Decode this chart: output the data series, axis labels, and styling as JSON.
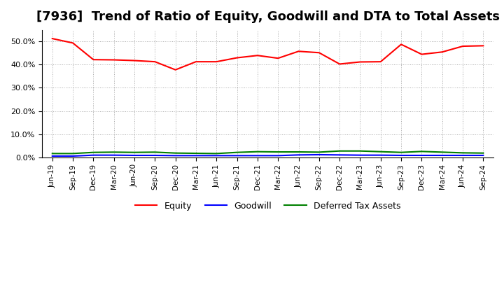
{
  "title": "[7936]  Trend of Ratio of Equity, Goodwill and DTA to Total Assets",
  "labels": [
    "Jun-19",
    "Sep-19",
    "Dec-19",
    "Mar-20",
    "Jun-20",
    "Sep-20",
    "Dec-20",
    "Mar-21",
    "Jun-21",
    "Sep-21",
    "Dec-21",
    "Mar-22",
    "Jun-22",
    "Sep-22",
    "Dec-22",
    "Mar-23",
    "Jun-23",
    "Sep-23",
    "Dec-23",
    "Mar-24",
    "Jun-24",
    "Sep-24"
  ],
  "equity": [
    0.513,
    0.494,
    0.422,
    0.421,
    0.418,
    0.413,
    0.378,
    0.413,
    0.413,
    0.43,
    0.44,
    0.428,
    0.458,
    0.452,
    0.403,
    0.412,
    0.413,
    0.488,
    0.445,
    0.455,
    0.48,
    0.482
  ],
  "goodwill": [
    0.005,
    0.005,
    0.009,
    0.009,
    0.008,
    0.008,
    0.007,
    0.007,
    0.007,
    0.007,
    0.007,
    0.007,
    0.01,
    0.011,
    0.01,
    0.009,
    0.009,
    0.008,
    0.008,
    0.008,
    0.008,
    0.008
  ],
  "dta": [
    0.016,
    0.016,
    0.021,
    0.022,
    0.021,
    0.022,
    0.018,
    0.017,
    0.016,
    0.021,
    0.024,
    0.023,
    0.023,
    0.022,
    0.027,
    0.027,
    0.024,
    0.021,
    0.025,
    0.022,
    0.019,
    0.018
  ],
  "equity_color": "#FF0000",
  "goodwill_color": "#0000FF",
  "dta_color": "#008000",
  "ylim": [
    0.0,
    0.55
  ],
  "yticks": [
    0.0,
    0.1,
    0.2,
    0.3,
    0.4,
    0.5
  ],
  "background_color": "#FFFFFF",
  "grid_color": "#AAAAAA",
  "title_fontsize": 13,
  "legend_labels": [
    "Equity",
    "Goodwill",
    "Deferred Tax Assets"
  ]
}
